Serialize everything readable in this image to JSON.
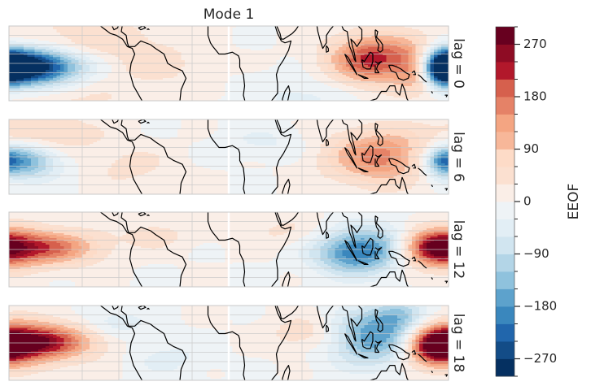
{
  "chart_data": {
    "type": "heatmap",
    "title": "Mode 1",
    "panels": [
      {
        "label": "lag = 0",
        "blobs": [
          {
            "lon": -175,
            "lat": -2,
            "amp": -290,
            "rlon": 28,
            "rlat": 7
          },
          {
            "lon": -150,
            "lat": -1,
            "amp": -120,
            "rlon": 28,
            "rlat": 6
          },
          {
            "lon": 120,
            "lat": 2,
            "amp": 240,
            "rlon": 25,
            "rlat": 9
          },
          {
            "lon": 152,
            "lat": -3,
            "amp": 180,
            "rlon": 12,
            "rlat": 8
          },
          {
            "lon": 178,
            "lat": -2,
            "amp": -240,
            "rlon": 10,
            "rlat": 6
          },
          {
            "lon": -115,
            "lat": 12,
            "amp": 55,
            "rlon": 45,
            "rlat": 10
          },
          {
            "lon": -60,
            "lat": -2,
            "amp": 40,
            "rlon": 25,
            "rlat": 8
          },
          {
            "lon": 60,
            "lat": -18,
            "amp": -40,
            "rlon": 28,
            "rlat": 8
          },
          {
            "lon": -125,
            "lat": -20,
            "amp": 35,
            "rlon": 35,
            "rlat": 6
          }
        ]
      },
      {
        "label": "lag = 6",
        "blobs": [
          {
            "lon": -172,
            "lat": -2,
            "amp": -190,
            "rlon": 22,
            "rlat": 7
          },
          {
            "lon": -150,
            "lat": 12,
            "amp": 70,
            "rlon": 30,
            "rlat": 8
          },
          {
            "lon": 125,
            "lat": 0,
            "amp": 170,
            "rlon": 30,
            "rlat": 10
          },
          {
            "lon": 175,
            "lat": -2,
            "amp": -110,
            "rlon": 8,
            "rlat": 5
          },
          {
            "lon": -80,
            "lat": -5,
            "amp": 40,
            "rlon": 25,
            "rlat": 8
          },
          {
            "lon": 30,
            "lat": 8,
            "amp": -35,
            "rlon": 25,
            "rlat": 6
          }
        ]
      },
      {
        "label": "lag = 12",
        "blobs": [
          {
            "lon": -165,
            "lat": 1,
            "amp": 180,
            "rlon": 30,
            "rlat": 7
          },
          {
            "lon": -130,
            "lat": 1,
            "amp": 60,
            "rlon": 25,
            "rlat": 6
          },
          {
            "lon": 100,
            "lat": -2,
            "amp": -170,
            "rlon": 22,
            "rlat": 8
          },
          {
            "lon": 128,
            "lat": 2,
            "amp": -90,
            "rlon": 22,
            "rlat": 9
          },
          {
            "lon": 168,
            "lat": 1,
            "amp": 210,
            "rlon": 18,
            "rlat": 7
          },
          {
            "lon": -60,
            "lat": 8,
            "amp": 45,
            "rlon": 20,
            "rlat": 6
          },
          {
            "lon": 40,
            "lat": 10,
            "amp": 35,
            "rlon": 25,
            "rlat": 6
          }
        ]
      },
      {
        "label": "lag = 18",
        "blobs": [
          {
            "lon": -172,
            "lat": 0,
            "amp": 260,
            "rlon": 30,
            "rlat": 8
          },
          {
            "lon": -135,
            "lat": 1,
            "amp": 90,
            "rlon": 28,
            "rlat": 6
          },
          {
            "lon": 120,
            "lat": 3,
            "amp": -200,
            "rlon": 28,
            "rlat": 10
          },
          {
            "lon": 140,
            "lat": 15,
            "amp": -90,
            "rlon": 15,
            "rlat": 6
          },
          {
            "lon": 170,
            "lat": -2,
            "amp": 210,
            "rlon": 15,
            "rlat": 7
          },
          {
            "lon": 70,
            "lat": 5,
            "amp": 70,
            "rlon": 25,
            "rlat": 7
          },
          {
            "lon": -95,
            "lat": 10,
            "amp": -55,
            "rlon": 20,
            "rlat": 6
          },
          {
            "lon": -50,
            "lat": -8,
            "amp": -40,
            "rlon": 22,
            "rlat": 7
          }
        ]
      }
    ],
    "colorbar": {
      "label": "EEOF",
      "min": -300,
      "max": 300,
      "step": 30,
      "ticks": [
        -270,
        -180,
        -90,
        0,
        90,
        180,
        270
      ],
      "tick_labels": [
        "−270",
        "−180",
        "−90",
        "0",
        "90",
        "180",
        "270"
      ],
      "colors": [
        "#053061",
        "#134c87",
        "#2166ac",
        "#3a87bd",
        "#5da2cc",
        "#8fc2dd",
        "#b3d5e7",
        "#d1e5f0",
        "#e2eef5",
        "#eef3f6",
        "#faeee7",
        "#fbe0d0",
        "#fddbc7",
        "#f7b799",
        "#f4a582",
        "#e58267",
        "#d6604d",
        "#b2182b",
        "#8e0c24",
        "#67001f"
      ]
    },
    "lon_range": [
      -180,
      180
    ],
    "lat_range": [
      -20,
      20
    ]
  }
}
